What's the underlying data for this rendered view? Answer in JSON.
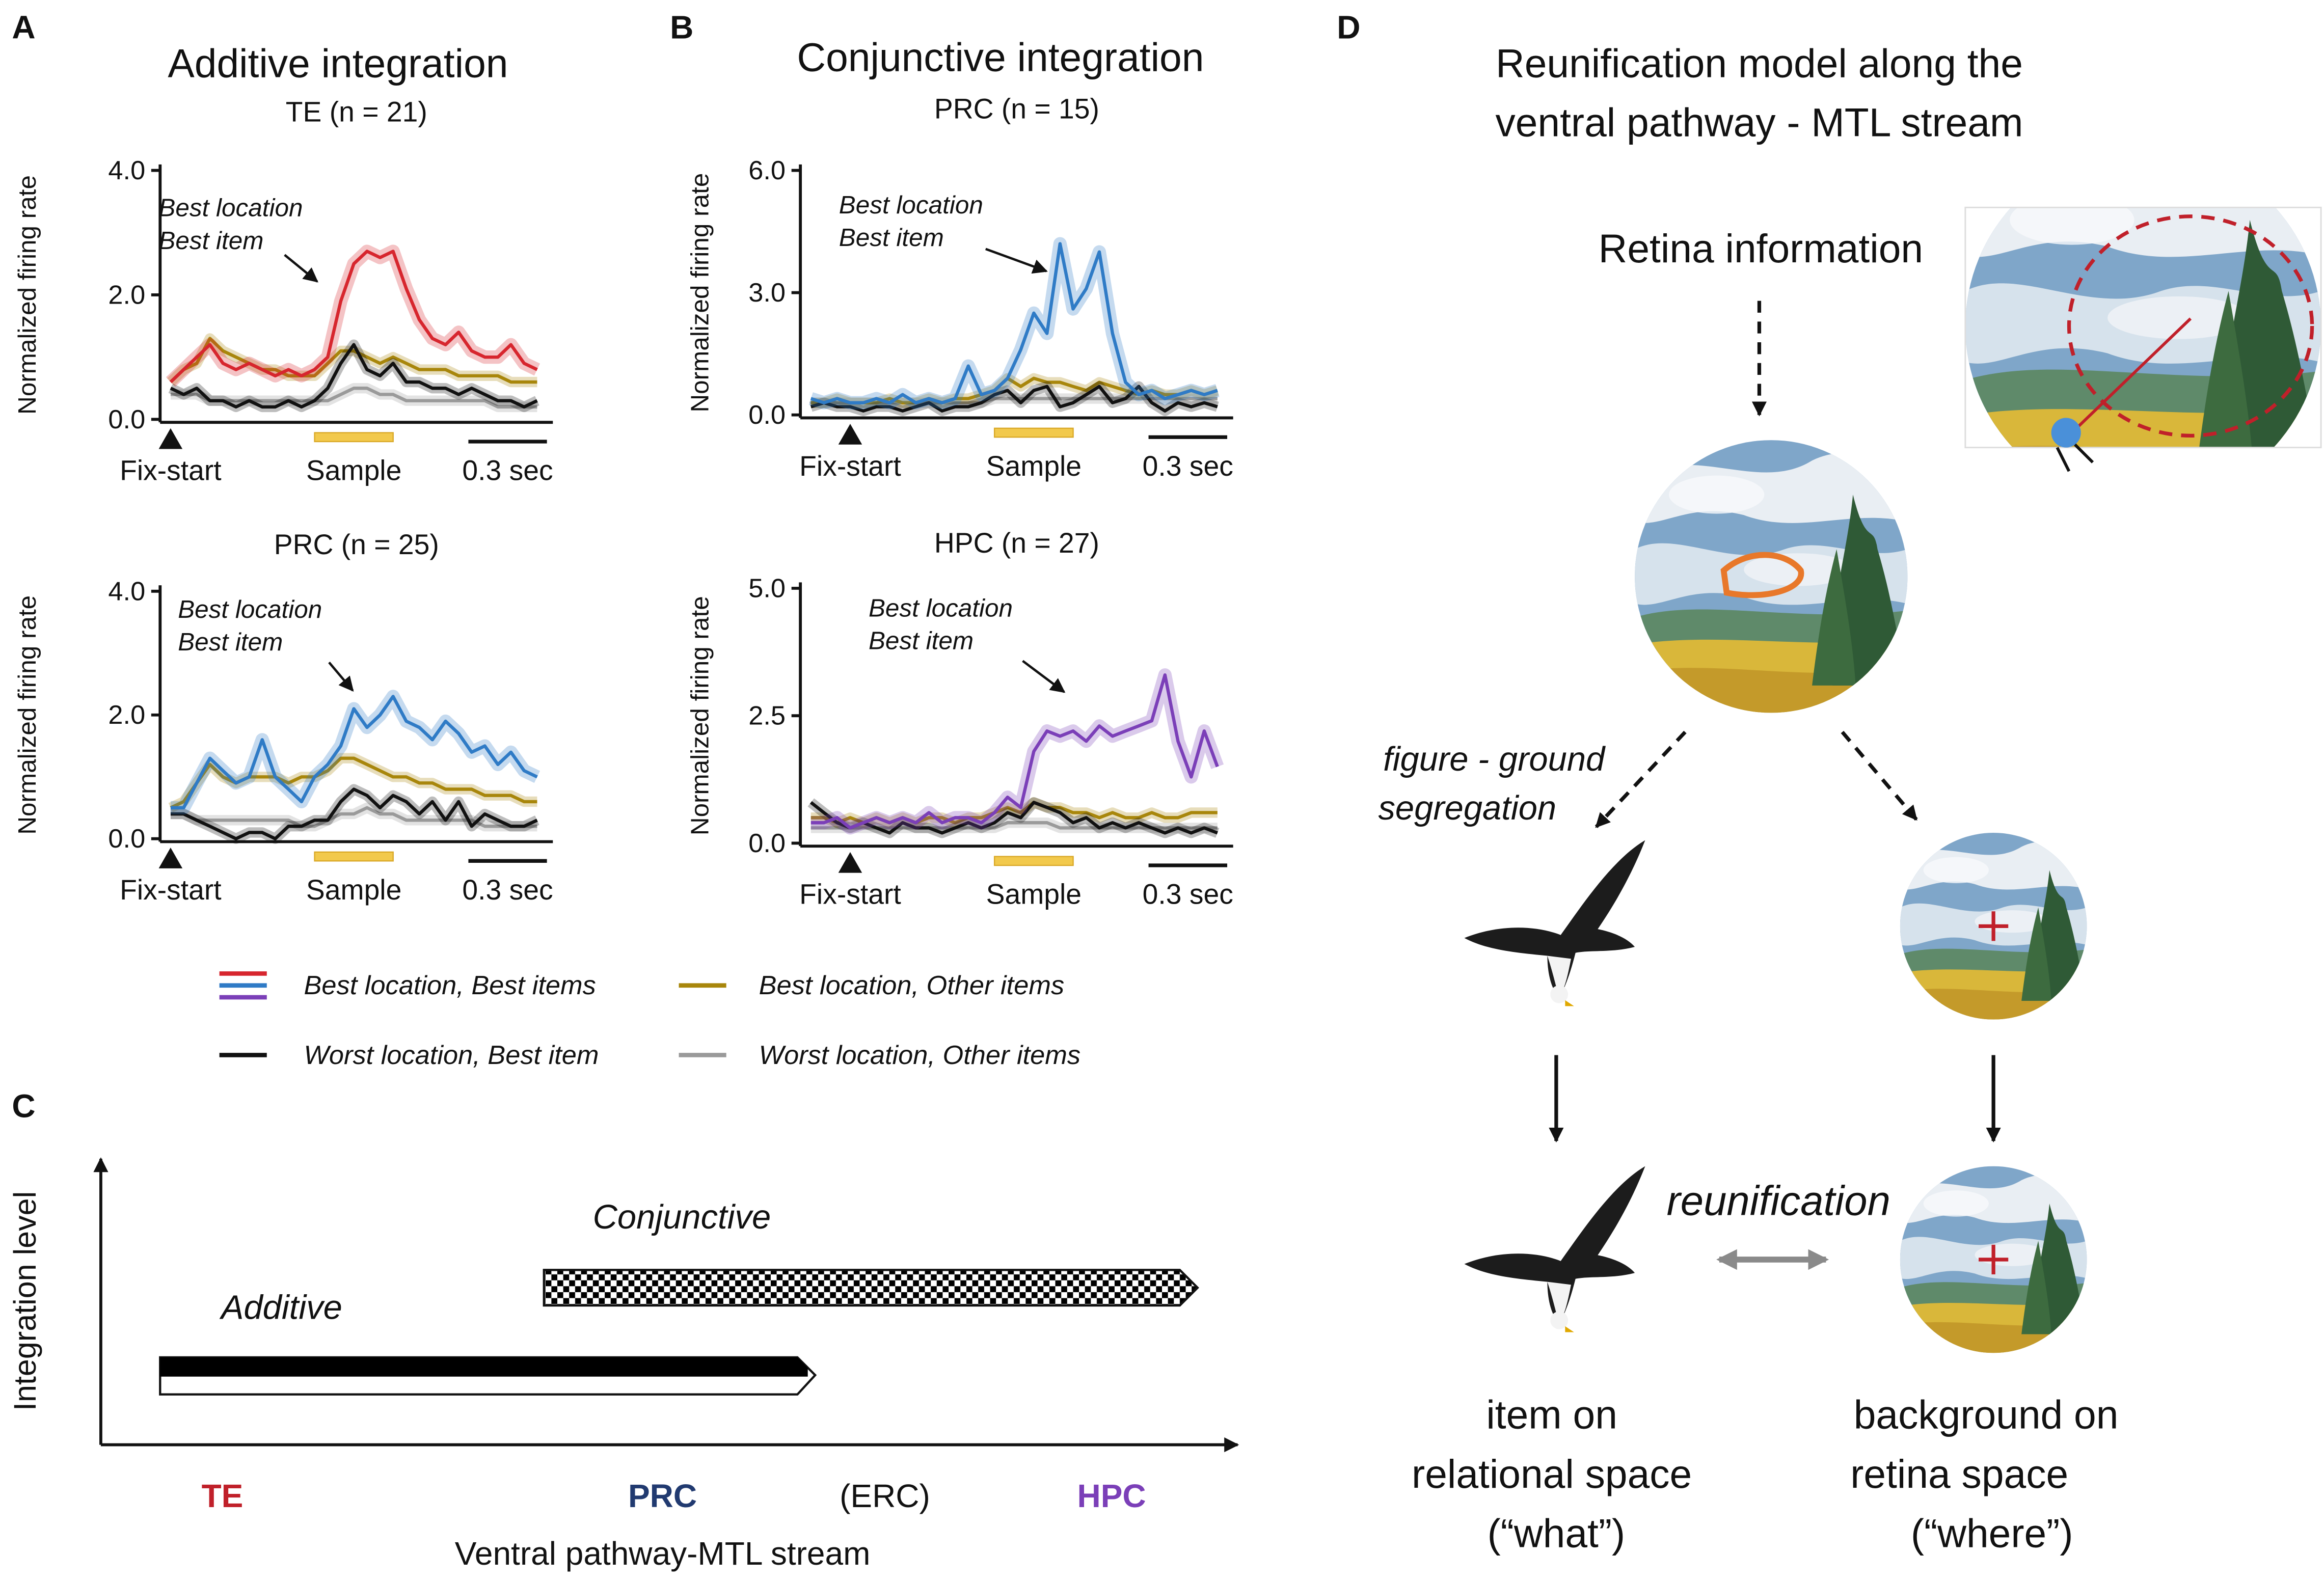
{
  "panel_labels": [
    "A",
    "B",
    "C",
    "D"
  ],
  "panel_titles": [
    "Additive integration",
    "Conjunctive integration"
  ],
  "chart_data": [
    {
      "type": "line",
      "title": "TE (n = 21)",
      "y_label": "Normalized firing rate",
      "annotation": [
        "Best location",
        "Best item"
      ],
      "events": [
        {
          "label": "Fix-start",
          "x": 0
        },
        {
          "label": "Sample",
          "x": [
            0.55,
            0.85
          ]
        }
      ],
      "scale_bar": {
        "label": "0.3 sec",
        "length": 0.3
      },
      "xlim": [
        -0.04,
        1.46
      ],
      "ylim": [
        0,
        4
      ],
      "yticks": [
        {
          "value": 0,
          "label": "0.0"
        },
        {
          "value": 2,
          "label": "2.0"
        },
        {
          "value": 4,
          "label": "4.0"
        }
      ],
      "x": [
        0,
        0.05,
        0.1,
        0.15,
        0.2,
        0.25,
        0.3,
        0.35,
        0.4,
        0.45,
        0.5,
        0.55,
        0.6,
        0.65,
        0.7,
        0.75,
        0.8,
        0.85,
        0.9,
        0.95,
        1.0,
        1.05,
        1.1,
        1.15,
        1.2,
        1.25,
        1.3,
        1.35,
        1.4
      ],
      "series": [
        {
          "name": "Best location, Best items",
          "color": "#d7262e",
          "values": [
            0.6,
            0.8,
            1.0,
            1.2,
            0.9,
            0.8,
            0.9,
            0.8,
            0.7,
            0.8,
            0.7,
            0.8,
            1.0,
            1.9,
            2.5,
            2.7,
            2.6,
            2.7,
            2.1,
            1.6,
            1.3,
            1.2,
            1.4,
            1.1,
            1.0,
            1.0,
            1.2,
            0.9,
            0.8
          ]
        },
        {
          "name": "Best location, Other items",
          "color": "#a8860b",
          "values": [
            0.6,
            0.8,
            0.9,
            1.3,
            1.1,
            1.0,
            0.9,
            0.8,
            0.8,
            0.7,
            0.7,
            0.7,
            0.9,
            1.1,
            1.1,
            1.0,
            0.9,
            1.0,
            0.9,
            0.8,
            0.8,
            0.8,
            0.7,
            0.7,
            0.7,
            0.7,
            0.6,
            0.6,
            0.6
          ]
        },
        {
          "name": "Worst location, Best item",
          "color": "#111111",
          "values": [
            0.5,
            0.4,
            0.5,
            0.3,
            0.3,
            0.2,
            0.3,
            0.2,
            0.2,
            0.3,
            0.2,
            0.3,
            0.5,
            0.9,
            1.2,
            0.8,
            0.7,
            0.9,
            0.6,
            0.6,
            0.5,
            0.5,
            0.4,
            0.5,
            0.4,
            0.3,
            0.3,
            0.2,
            0.3
          ]
        },
        {
          "name": "Worst location, Other items",
          "color": "#9a9a9a",
          "values": [
            0.4,
            0.4,
            0.4,
            0.3,
            0.3,
            0.3,
            0.3,
            0.3,
            0.3,
            0.3,
            0.3,
            0.3,
            0.3,
            0.4,
            0.5,
            0.5,
            0.4,
            0.4,
            0.3,
            0.3,
            0.3,
            0.3,
            0.3,
            0.3,
            0.3,
            0.2,
            0.2,
            0.2,
            0.2
          ]
        }
      ]
    },
    {
      "type": "line",
      "title": "PRC (n = 25)",
      "y_label": "Normalized firing rate",
      "annotation": [
        "Best location",
        "Best item"
      ],
      "events": [
        {
          "label": "Fix-start",
          "x": 0
        },
        {
          "label": "Sample",
          "x": [
            0.55,
            0.85
          ]
        }
      ],
      "scale_bar": {
        "label": "0.3 sec",
        "length": 0.3
      },
      "xlim": [
        -0.04,
        1.46
      ],
      "ylim": [
        0,
        4
      ],
      "yticks": [
        {
          "value": 0,
          "label": "0.0"
        },
        {
          "value": 2,
          "label": "2.0"
        },
        {
          "value": 4,
          "label": "4.0"
        }
      ],
      "x": [
        0,
        0.05,
        0.1,
        0.15,
        0.2,
        0.25,
        0.3,
        0.35,
        0.4,
        0.45,
        0.5,
        0.55,
        0.6,
        0.65,
        0.7,
        0.75,
        0.8,
        0.85,
        0.9,
        0.95,
        1.0,
        1.05,
        1.1,
        1.15,
        1.2,
        1.25,
        1.3,
        1.35,
        1.4
      ],
      "series": [
        {
          "color": "#2f7bc6",
          "values": [
            0.5,
            0.5,
            0.9,
            1.3,
            1.1,
            0.9,
            1.0,
            1.6,
            1.0,
            0.8,
            0.6,
            1.0,
            1.2,
            1.5,
            2.1,
            1.8,
            2.0,
            2.3,
            1.9,
            1.8,
            1.6,
            1.9,
            1.7,
            1.4,
            1.5,
            1.2,
            1.4,
            1.1,
            1.0
          ]
        },
        {
          "color": "#a8860b",
          "values": [
            0.5,
            0.6,
            0.9,
            1.2,
            1.0,
            0.9,
            1.0,
            1.0,
            1.0,
            0.9,
            1.0,
            1.0,
            1.1,
            1.3,
            1.3,
            1.2,
            1.1,
            1.0,
            1.0,
            0.9,
            0.9,
            0.8,
            0.8,
            0.8,
            0.7,
            0.7,
            0.7,
            0.6,
            0.6
          ]
        },
        {
          "color": "#111111",
          "values": [
            0.4,
            0.4,
            0.3,
            0.2,
            0.1,
            0,
            0.1,
            0.1,
            0,
            0.2,
            0.2,
            0.3,
            0.3,
            0.6,
            0.8,
            0.7,
            0.5,
            0.7,
            0.6,
            0.4,
            0.6,
            0.3,
            0.6,
            0.2,
            0.4,
            0.3,
            0.2,
            0.2,
            0.3
          ]
        },
        {
          "color": "#9a9a9a",
          "values": [
            0.4,
            0.4,
            0.3,
            0.3,
            0.3,
            0.3,
            0.3,
            0.3,
            0.3,
            0.3,
            0.2,
            0.2,
            0.3,
            0.4,
            0.4,
            0.5,
            0.4,
            0.4,
            0.3,
            0.3,
            0.3,
            0.3,
            0.3,
            0.3,
            0.2,
            0.2,
            0.2,
            0.2,
            0.2
          ]
        }
      ]
    },
    {
      "type": "line",
      "title": "PRC (n = 15)",
      "y_label": "Normalized firing rate",
      "annotation": [
        "Best location",
        "Best item"
      ],
      "events": [
        {
          "label": "Fix-start",
          "x": 0
        },
        {
          "label": "Sample",
          "x": [
            0.55,
            0.85
          ]
        }
      ],
      "scale_bar": {
        "label": "0.3 sec",
        "length": 0.3
      },
      "xlim": [
        -0.19,
        1.46
      ],
      "ylim": [
        0,
        6
      ],
      "yticks": [
        {
          "value": 0,
          "label": "0.0"
        },
        {
          "value": 3,
          "label": "3.0"
        },
        {
          "value": 6,
          "label": "6.0"
        }
      ],
      "x": [
        -0.15,
        -0.1,
        -0.05,
        0,
        0.05,
        0.1,
        0.15,
        0.2,
        0.25,
        0.3,
        0.35,
        0.4,
        0.45,
        0.5,
        0.55,
        0.6,
        0.65,
        0.7,
        0.75,
        0.8,
        0.85,
        0.9,
        0.95,
        1.0,
        1.05,
        1.1,
        1.15,
        1.2,
        1.25,
        1.3,
        1.35,
        1.4
      ],
      "series": [
        {
          "color": "#2f7bc6",
          "values": [
            0.4,
            0.3,
            0.4,
            0.3,
            0.3,
            0.4,
            0.3,
            0.5,
            0.3,
            0.4,
            0.3,
            0.4,
            1.2,
            0.5,
            0.6,
            0.9,
            1.6,
            2.5,
            2.0,
            4.2,
            2.6,
            3.1,
            4.0,
            2.0,
            0.8,
            0.5,
            0.6,
            0.4,
            0.5,
            0.6,
            0.5,
            0.6
          ]
        },
        {
          "color": "#a8860b",
          "values": [
            0.3,
            0.3,
            0.4,
            0.3,
            0.3,
            0.3,
            0.4,
            0.3,
            0.3,
            0.4,
            0.3,
            0.4,
            0.4,
            0.5,
            0.6,
            0.9,
            0.7,
            0.9,
            0.8,
            0.8,
            0.7,
            0.6,
            0.8,
            0.7,
            0.6,
            0.5,
            0.6,
            0.5,
            0.5,
            0.6,
            0.5,
            0.6
          ]
        },
        {
          "color": "#111111",
          "values": [
            0.2,
            0.3,
            0.2,
            0.2,
            0.1,
            0.2,
            0.2,
            0.1,
            0.2,
            0.3,
            0.1,
            0.2,
            0.2,
            0.3,
            0.5,
            0.6,
            0.3,
            0.6,
            0.7,
            0.2,
            0.3,
            0.5,
            0.7,
            0.3,
            0.4,
            0.7,
            0.3,
            0.1,
            0.3,
            0.2,
            0.3,
            0.2
          ]
        },
        {
          "color": "#9a9a9a",
          "values": [
            0.3,
            0.3,
            0.3,
            0.3,
            0.3,
            0.3,
            0.3,
            0.3,
            0.3,
            0.3,
            0.3,
            0.3,
            0.3,
            0.3,
            0.4,
            0.4,
            0.4,
            0.4,
            0.4,
            0.4,
            0.4,
            0.4,
            0.4,
            0.4,
            0.4,
            0.4,
            0.4,
            0.4,
            0.4,
            0.4,
            0.4,
            0.4
          ]
        }
      ]
    },
    {
      "type": "line",
      "title": "HPC (n = 27)",
      "y_label": "Normalized firing rate",
      "annotation": [
        "Best location",
        "Best item"
      ],
      "events": [
        {
          "label": "Fix-start",
          "x": 0
        },
        {
          "label": "Sample",
          "x": [
            0.55,
            0.85
          ]
        }
      ],
      "scale_bar": {
        "label": "0.3 sec",
        "length": 0.3
      },
      "xlim": [
        -0.19,
        1.46
      ],
      "ylim": [
        0,
        5
      ],
      "yticks": [
        {
          "value": 0,
          "label": "0.0"
        },
        2.5,
        {
          "value": 5,
          "label": "5.0"
        }
      ],
      "x": [
        -0.15,
        -0.1,
        -0.05,
        0,
        0.05,
        0.1,
        0.15,
        0.2,
        0.25,
        0.3,
        0.35,
        0.4,
        0.45,
        0.5,
        0.55,
        0.6,
        0.65,
        0.7,
        0.75,
        0.8,
        0.85,
        0.9,
        0.95,
        1.0,
        1.05,
        1.1,
        1.15,
        1.2,
        1.25,
        1.3,
        1.35,
        1.4
      ],
      "series": [
        {
          "color": "#7b3fb8",
          "values": [
            0.4,
            0.4,
            0.5,
            0.3,
            0.4,
            0.5,
            0.4,
            0.5,
            0.4,
            0.6,
            0.4,
            0.5,
            0.5,
            0.4,
            0.6,
            0.9,
            0.7,
            1.8,
            2.2,
            2.1,
            2.2,
            2.0,
            2.3,
            2.1,
            2.2,
            2.3,
            2.4,
            3.3,
            2.0,
            1.3,
            2.2,
            1.5
          ]
        },
        {
          "color": "#a8860b",
          "values": [
            0.5,
            0.5,
            0.4,
            0.5,
            0.4,
            0.5,
            0.4,
            0.5,
            0.4,
            0.5,
            0.5,
            0.4,
            0.5,
            0.5,
            0.6,
            0.7,
            0.6,
            0.8,
            0.7,
            0.7,
            0.6,
            0.6,
            0.5,
            0.6,
            0.5,
            0.5,
            0.6,
            0.5,
            0.5,
            0.6,
            0.6,
            0.6
          ]
        },
        {
          "color": "#111111",
          "values": [
            0.8,
            0.6,
            0.4,
            0.3,
            0.4,
            0.3,
            0.2,
            0.4,
            0.3,
            0.3,
            0.2,
            0.3,
            0.4,
            0.3,
            0.4,
            0.6,
            0.5,
            0.8,
            0.7,
            0.6,
            0.4,
            0.5,
            0.3,
            0.4,
            0.3,
            0.4,
            0.3,
            0.2,
            0.3,
            0.2,
            0.3,
            0.2
          ]
        },
        {
          "color": "#9a9a9a",
          "values": [
            0.3,
            0.3,
            0.3,
            0.3,
            0.3,
            0.3,
            0.3,
            0.3,
            0.3,
            0.3,
            0.3,
            0.3,
            0.3,
            0.3,
            0.3,
            0.4,
            0.4,
            0.4,
            0.4,
            0.3,
            0.3,
            0.3,
            0.3,
            0.3,
            0.3,
            0.3,
            0.3,
            0.3,
            0.3,
            0.3,
            0.3,
            0.3
          ]
        }
      ]
    }
  ],
  "panel_c": {
    "y_axis_label": "Integration level",
    "bars": [
      "Conjunctive",
      "Additive"
    ],
    "regions": [
      "TE",
      "PRC",
      "(ERC)",
      "HPC"
    ],
    "x_axis_label": "Ventral pathway-MTL stream"
  },
  "panel_d": {
    "title": [
      "Reunification model along the",
      "ventral pathway - MTL stream"
    ],
    "input": "Retina information",
    "split": [
      "figure - ground",
      "segregation"
    ],
    "merge": "reunification",
    "item": [
      "item on",
      "relational space",
      "(“what”)"
    ],
    "background": [
      "background on",
      "retina space",
      "(“where”)"
    ]
  }
}
